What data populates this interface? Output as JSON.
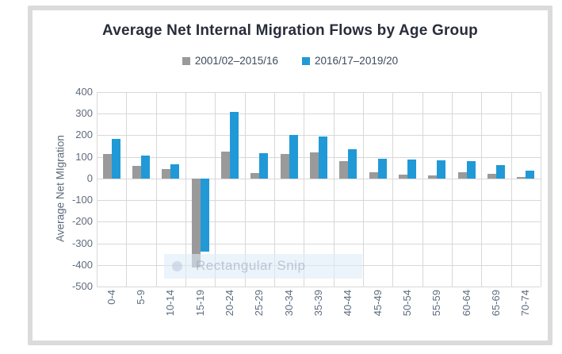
{
  "card": {
    "border_color": "#dbdbdb",
    "background": "#ffffff"
  },
  "chart_data": {
    "type": "bar",
    "title": "Average Net Internal Migration Flows by Age Group",
    "xlabel": "",
    "ylabel": "Average Net MIgration",
    "ylim": [
      -500,
      400
    ],
    "ytick_step": 100,
    "grid": true,
    "legend_position": "top-center",
    "categories": [
      "0-4",
      "5-9",
      "10-14",
      "15-19",
      "20-24",
      "25-29",
      "30-34",
      "35-39",
      "40-44",
      "45-49",
      "50-54",
      "55-59",
      "60-64",
      "65-69",
      "70-74"
    ],
    "series": [
      {
        "name": "2001/02–2015/16",
        "color": "#9a9a9a",
        "values": [
          115,
          60,
          42,
          -412,
          123,
          27,
          113,
          121,
          80,
          28,
          17,
          16,
          28,
          22,
          7
        ]
      },
      {
        "name": "2016/17–2019/20",
        "color": "#2199d6",
        "values": [
          185,
          105,
          67,
          -340,
          308,
          118,
          200,
          196,
          137,
          90,
          86,
          84,
          82,
          61,
          36
        ]
      }
    ],
    "colors": {
      "gridline": "#d8d8d8",
      "tick_text": "#5e6b7c",
      "title_text": "#272d3a",
      "legend_text": "#3e4a5e"
    }
  },
  "watermark": {
    "label": "Rectangular Snip"
  }
}
